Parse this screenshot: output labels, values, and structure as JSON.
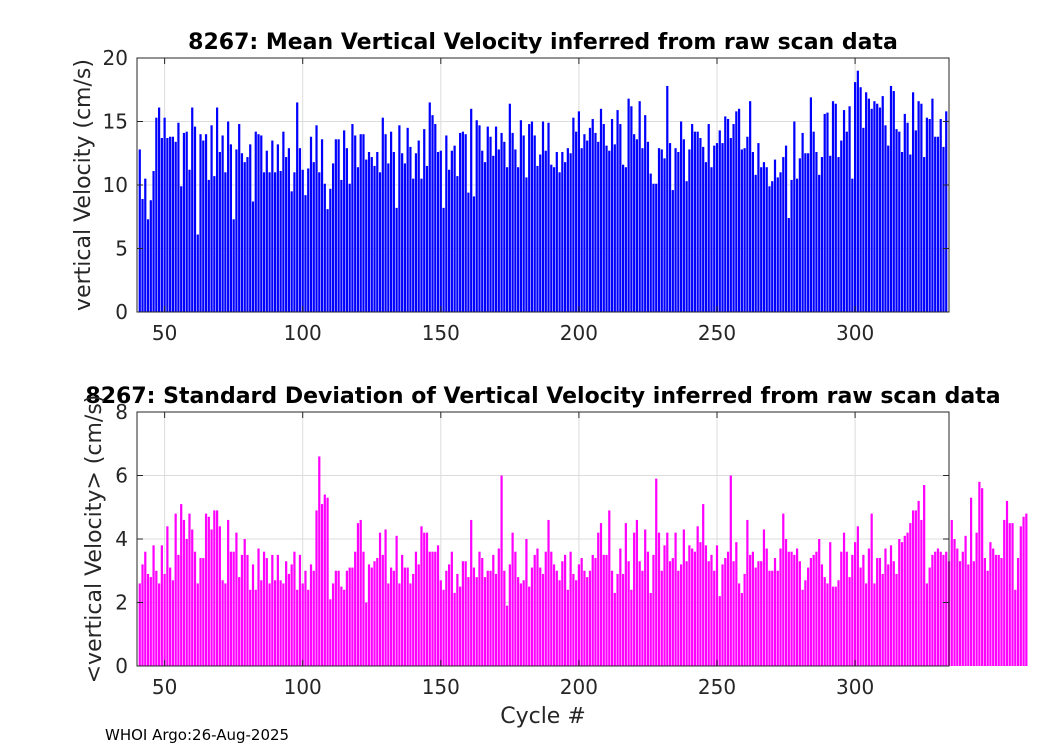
{
  "footer": "WHOI Argo:26-Aug-2025",
  "colors": {
    "top_bars": "#0000ff",
    "bottom_bars": "#ff00ff"
  },
  "chart_data": [
    {
      "type": "bar",
      "title": "8267: Mean Vertical Velocity inferred from raw scan data",
      "xlabel": "",
      "ylabel": "vertical Velocity (cm/s)",
      "xlim": [
        40,
        334
      ],
      "ylim": [
        0,
        20
      ],
      "xticks": [
        50,
        100,
        150,
        200,
        250,
        300
      ],
      "yticks": [
        0,
        5,
        10,
        15,
        20
      ],
      "grid": true,
      "x_start": 41,
      "values": [
        12.8,
        8.9,
        10.5,
        7.3,
        8.8,
        11.1,
        15.3,
        16.1,
        13.7,
        15.3,
        13.7,
        13.8,
        13.8,
        13.4,
        14.9,
        9.9,
        14.1,
        14.2,
        11.2,
        16.1,
        14.6,
        6.1,
        14.0,
        13.5,
        14.0,
        10.4,
        14.7,
        10.7,
        16.1,
        12.6,
        13.9,
        11.0,
        15.0,
        13.2,
        7.3,
        12.8,
        14.8,
        12.5,
        11.8,
        12.2,
        13.2,
        8.7,
        14.2,
        14.0,
        13.9,
        11.0,
        12.7,
        11.0,
        13.5,
        11.0,
        13.2,
        11.1,
        14.2,
        12.2,
        12.9,
        9.5,
        11.0,
        16.5,
        12.9,
        11.2,
        9.2,
        11.3,
        13.8,
        11.8,
        14.7,
        11.0,
        13.6,
        10.1,
        8.1,
        9.7,
        11.7,
        13.6,
        13.6,
        10.4,
        14.3,
        12.9,
        10.1,
        14.8,
        13.9,
        11.4,
        14.0,
        14.0,
        12.0,
        12.6,
        12.2,
        11.5,
        12.6,
        11.0,
        15.3,
        14.0,
        11.7,
        14.2,
        12.6,
        8.2,
        14.7,
        12.5,
        11.7,
        14.5,
        13.0,
        10.5,
        12.5,
        13.5,
        10.5,
        14.4,
        11.5,
        16.5,
        15.5,
        14.8,
        12.6,
        12.7,
        8.2,
        13.9,
        11.2,
        12.7,
        13.1,
        10.7,
        14.1,
        14.2,
        14.0,
        9.4,
        16.0,
        9.1,
        15.1,
        14.7,
        12.7,
        11.8,
        14.6,
        13.8,
        12.3,
        14.6,
        12.8,
        14.1,
        13.4,
        11.4,
        16.4,
        14.1,
        12.8,
        11.4,
        15.1,
        13.9,
        10.6,
        14.8,
        15.0,
        13.9,
        11.5,
        12.4,
        15.0,
        12.7,
        14.9,
        11.6,
        11.4,
        12.6,
        11.0,
        12.6,
        11.8,
        12.9,
        12.5,
        15.3,
        14.2,
        15.8,
        12.9,
        14.0,
        13.5,
        14.5,
        15.2,
        14.1,
        13.4,
        16.0,
        14.8,
        13.1,
        12.7,
        15.2,
        13.2,
        15.9,
        14.8,
        11.6,
        11.4,
        16.8,
        16.2,
        14.0,
        13.6,
        16.6,
        12.9,
        15.5,
        13.4,
        10.9,
        10.1,
        10.1,
        12.9,
        12.8,
        12.1,
        17.8,
        13.3,
        9.6,
        12.9,
        12.6,
        15.0,
        13.6,
        10.3,
        12.8,
        14.8,
        14.2,
        14.2,
        13.7,
        13.0,
        11.8,
        14.8,
        11.4,
        13.1,
        13.3,
        14.3,
        13.3,
        15.4,
        15.2,
        13.7,
        14.8,
        15.8,
        16.0,
        12.8,
        12.9,
        13.8,
        16.6,
        12.6,
        10.8,
        13.3,
        11.4,
        11.8,
        11.4,
        9.9,
        10.3,
        12.0,
        10.6,
        11.0,
        12.2,
        13.1,
        7.4,
        10.4,
        15.0,
        10.5,
        12.1,
        14.1,
        12.5,
        12.5,
        16.9,
        14.2,
        12.6,
        10.8,
        12.2,
        15.6,
        15.7,
        12.3,
        16.6,
        16.4,
        12.2,
        13.5,
        15.9,
        14.2,
        16.2,
        10.5,
        18.1,
        19.0,
        17.7,
        14.5,
        17.3,
        16.8,
        16.0,
        16.6,
        16.4,
        16.1,
        17.0,
        14.7,
        13.1,
        17.8,
        17.4,
        14.4,
        14.2,
        12.6,
        15.6,
        14.9,
        12.4,
        17.3,
        14.3,
        16.6,
        16.4,
        12.2,
        15.3,
        15.2,
        16.8,
        13.8,
        13.8,
        15.2,
        13.0,
        15.8
      ]
    },
    {
      "type": "bar",
      "title": "8267: Standard Deviation of Vertical Velocity inferred from raw scan data",
      "xlabel": "Cycle #",
      "ylabel": "<vertical Velocity> (cm/s)",
      "xlim": [
        40,
        334
      ],
      "ylim": [
        0,
        8
      ],
      "xticks": [
        50,
        100,
        150,
        200,
        250,
        300
      ],
      "yticks": [
        0,
        2,
        4,
        6,
        8
      ],
      "grid": true,
      "x_start": 41,
      "values": [
        2.6,
        3.2,
        3.6,
        2.9,
        2.8,
        3.8,
        3.0,
        2.6,
        3.8,
        2.9,
        4.4,
        3.1,
        2.7,
        4.8,
        3.5,
        5.1,
        4.6,
        4.0,
        4.8,
        4.3,
        3.6,
        2.6,
        3.4,
        3.4,
        4.8,
        4.7,
        4.3,
        4.9,
        4.9,
        4.4,
        2.7,
        2.6,
        4.6,
        3.6,
        3.6,
        4.2,
        2.8,
        3.5,
        4.0,
        3.5,
        2.4,
        3.2,
        2.4,
        3.7,
        2.7,
        3.6,
        3.4,
        2.6,
        3.5,
        2.7,
        3.5,
        2.7,
        2.6,
        3.3,
        2.9,
        3.2,
        3.6,
        2.4,
        3.5,
        2.6,
        3.0,
        2.4,
        3.2,
        3.0,
        4.9,
        6.6,
        5.1,
        5.4,
        5.3,
        2.1,
        2.6,
        3.0,
        3.0,
        2.5,
        2.4,
        3.0,
        3.1,
        3.1,
        3.6,
        4.5,
        4.6,
        3.6,
        2.0,
        3.2,
        3.1,
        3.3,
        3.4,
        4.2,
        3.5,
        4.3,
        2.6,
        3.1,
        3.0,
        4.1,
        2.6,
        3.5,
        3.1,
        3.1,
        2.6,
        2.9,
        3.6,
        3.2,
        4.4,
        4.2,
        4.2,
        3.6,
        3.6,
        3.6,
        3.8,
        2.7,
        2.4,
        3.0,
        3.2,
        3.6,
        2.3,
        2.9,
        2.5,
        3.3,
        3.3,
        2.8,
        4.6,
        3.1,
        2.8,
        3.6,
        3.4,
        2.8,
        3.0,
        3.0,
        3.5,
        2.9,
        3.7,
        6.0,
        3.0,
        1.9,
        3.2,
        4.2,
        3.6,
        2.8,
        2.6,
        2.7,
        4.0,
        2.5,
        3.1,
        3.5,
        3.7,
        3.1,
        2.9,
        3.6,
        4.6,
        3.6,
        3.2,
        3.0,
        2.7,
        3.3,
        3.5,
        2.4,
        3.6,
        2.9,
        2.7,
        3.2,
        3.4,
        3.0,
        2.8,
        3.0,
        3.5,
        3.4,
        4.2,
        4.5,
        3.5,
        3.5,
        4.9,
        3.0,
        2.3,
        2.9,
        3.7,
        2.9,
        4.5,
        3.3,
        2.4,
        4.2,
        4.6,
        3.3,
        3.0,
        4.3,
        3.6,
        2.3,
        3.5,
        5.9,
        4.2,
        3.0,
        3.8,
        4.2,
        3.3,
        3.4,
        4.2,
        3.0,
        3.2,
        4.3,
        3.3,
        3.8,
        3.7,
        3.6,
        4.4,
        3.9,
        5.1,
        3.8,
        3.3,
        3.5,
        3.0,
        3.8,
        2.2,
        3.2,
        3.4,
        3.6,
        6.0,
        3.3,
        3.9,
        2.6,
        2.3,
        2.9,
        4.6,
        3.5,
        3.6,
        3.1,
        3.3,
        3.3,
        4.3,
        3.7,
        3.0,
        3.0,
        3.4,
        3.0,
        3.7,
        4.8,
        4.0,
        3.6,
        3.6,
        3.5,
        3.7,
        3.3,
        2.4,
        2.7,
        3.1,
        3.4,
        3.5,
        3.6,
        4.0,
        3.2,
        2.8,
        2.6,
        3.9,
        2.5,
        2.5,
        2.7,
        3.6,
        4.2,
        3.6,
        2.8,
        3.5,
        3.9,
        4.4,
        3.1,
        3.5,
        2.6,
        3.7,
        4.8,
        2.6,
        3.4,
        3.4,
        2.9,
        3.7,
        3.2,
        3.8,
        3.3,
        2.9,
        4.0,
        3.9,
        4.1,
        4.2,
        4.5,
        4.9,
        4.9,
        5.2,
        4.6,
        5.7,
        2.6,
        3.1,
        3.5,
        3.6,
        3.7,
        3.6,
        3.5,
        3.6,
        3.3,
        4.6,
        4.0,
        3.7,
        3.3,
        3.6,
        4.1,
        3.2,
        5.3,
        3.3,
        4.2,
        5.8,
        5.6,
        3.4,
        3.0,
        3.9,
        3.7,
        3.5,
        3.5,
        3.4,
        4.6,
        5.2,
        4.5,
        4.5,
        2.4,
        3.4,
        4.4,
        4.7,
        4.8
      ]
    }
  ]
}
